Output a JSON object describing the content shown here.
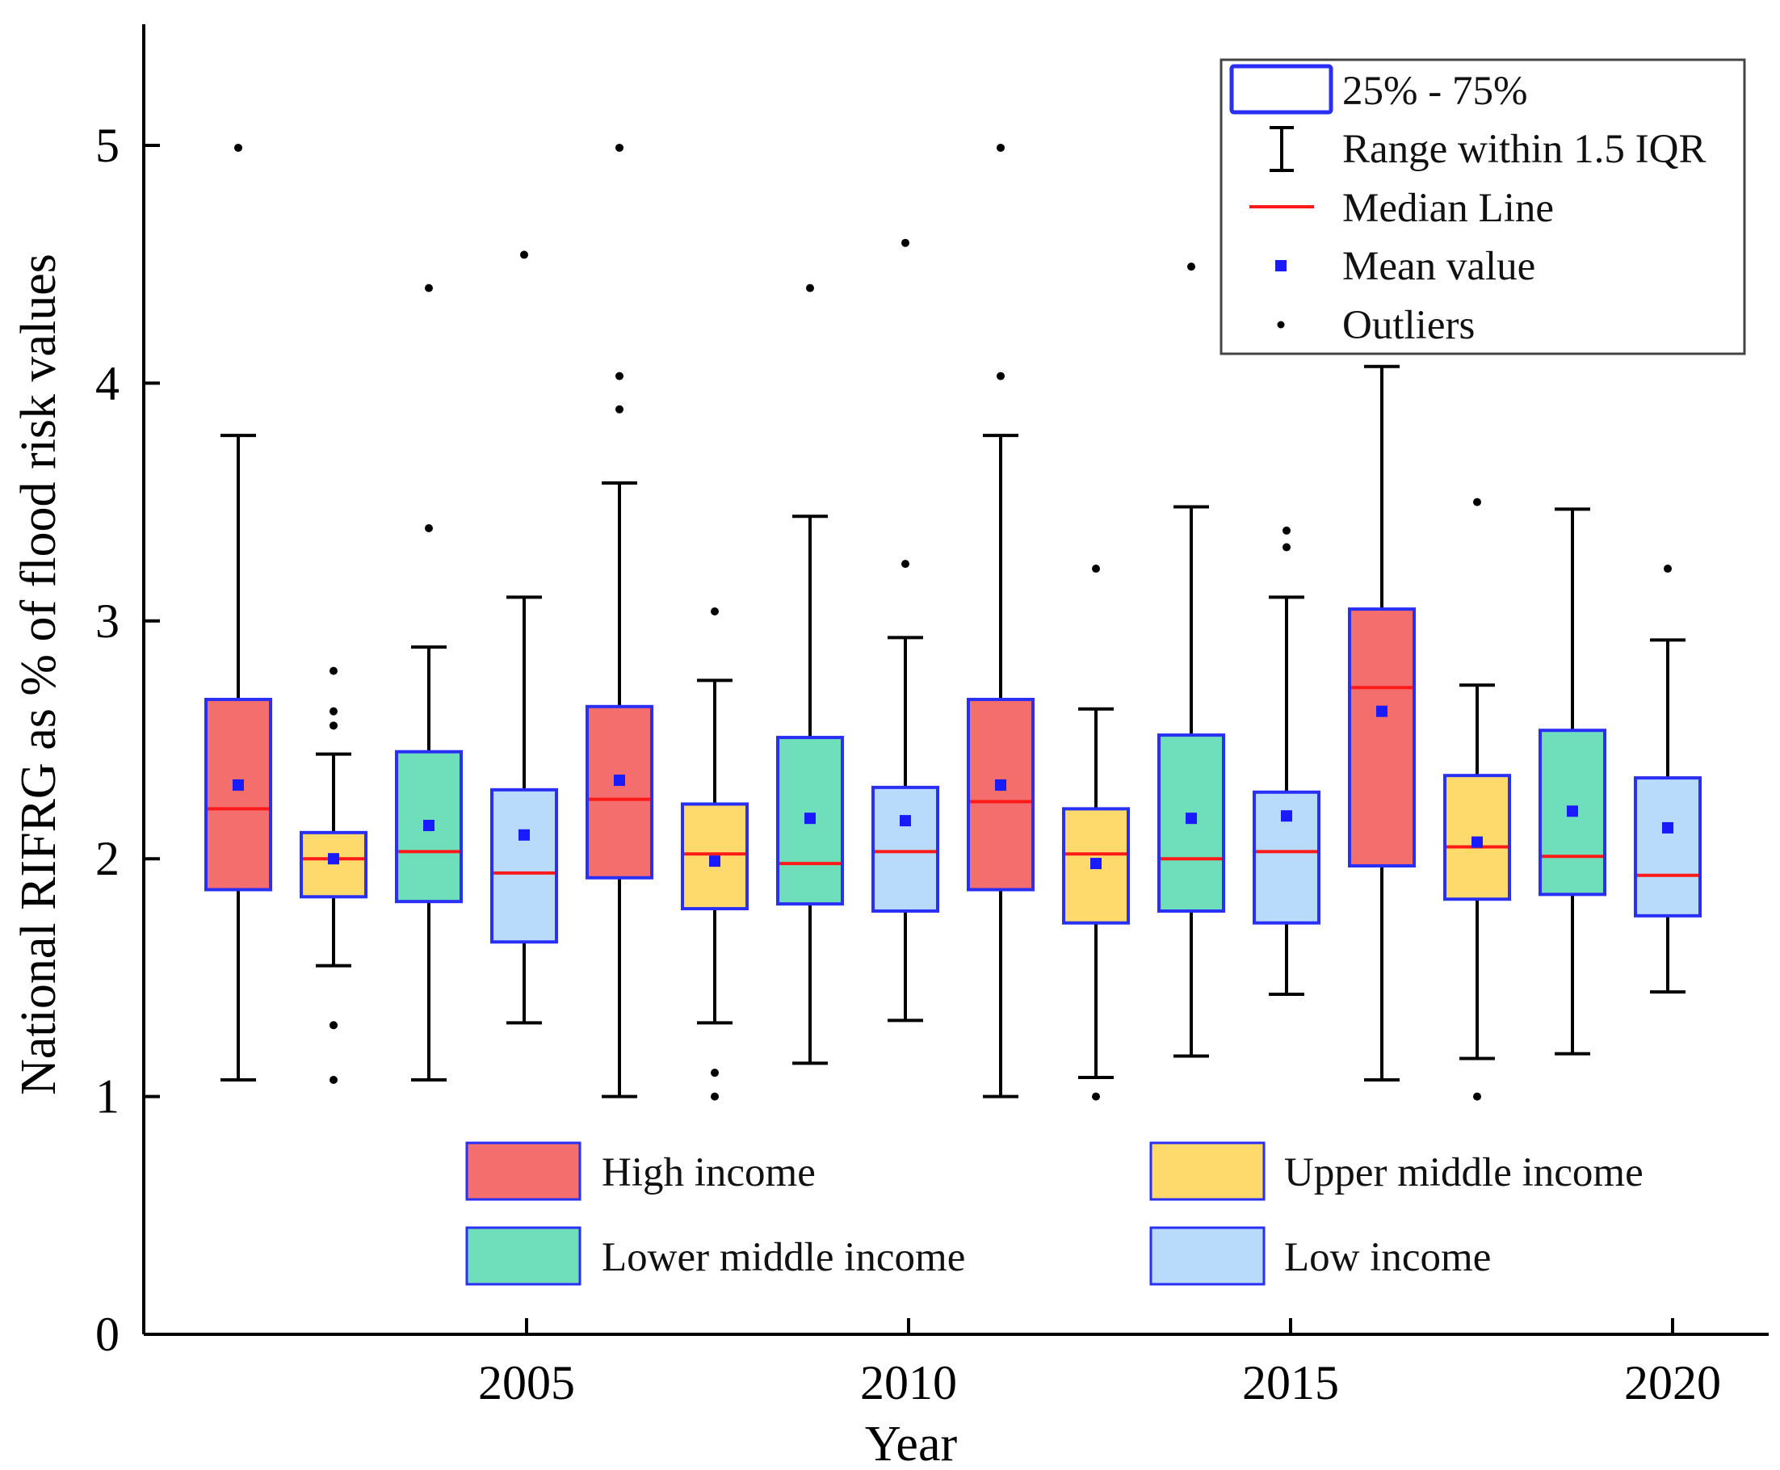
{
  "chart_data": {
    "type": "box",
    "title": "",
    "xlabel": "Year",
    "ylabel": "National RIFRG as % of flood risk values",
    "ylim": [
      0,
      5.5
    ],
    "yticks": [
      0,
      1,
      2,
      3,
      4,
      5
    ],
    "xticks": [
      "2005",
      "2010",
      "2015",
      "2020"
    ],
    "grid": false,
    "groups": [
      {
        "key": "high",
        "name": "High income",
        "color": "#f46e6e"
      },
      {
        "key": "upper",
        "name": "Upper middle income",
        "color": "#fdda6b"
      },
      {
        "key": "lower",
        "name": "Lower middle income",
        "color": "#6fdfbb"
      },
      {
        "key": "low",
        "name": "Low income",
        "color": "#b9dbfb"
      }
    ],
    "boxes": [
      {
        "group": "high",
        "whisker_low": 1.07,
        "q1": 1.87,
        "median": 2.21,
        "q3": 2.67,
        "whisker_high": 3.78,
        "mean": 2.31,
        "outliers": [
          4.99
        ]
      },
      {
        "group": "upper",
        "whisker_low": 1.55,
        "q1": 1.84,
        "median": 2.0,
        "q3": 2.11,
        "whisker_high": 2.44,
        "mean": 2.0,
        "outliers": [
          2.79,
          2.62,
          2.56,
          1.3,
          1.07
        ]
      },
      {
        "group": "lower",
        "whisker_low": 1.07,
        "q1": 1.82,
        "median": 2.03,
        "q3": 2.45,
        "whisker_high": 2.89,
        "mean": 2.14,
        "outliers": [
          4.4,
          3.39
        ]
      },
      {
        "group": "low",
        "whisker_low": 1.31,
        "q1": 1.65,
        "median": 1.94,
        "q3": 2.29,
        "whisker_high": 3.1,
        "mean": 2.1,
        "outliers": [
          4.54
        ]
      },
      {
        "group": "high",
        "whisker_low": 1.0,
        "q1": 1.92,
        "median": 2.25,
        "q3": 2.64,
        "whisker_high": 3.58,
        "mean": 2.33,
        "outliers": [
          4.99,
          4.03,
          3.89
        ]
      },
      {
        "group": "upper",
        "whisker_low": 1.31,
        "q1": 1.79,
        "median": 2.02,
        "q3": 2.23,
        "whisker_high": 2.75,
        "mean": 1.99,
        "outliers": [
          3.04,
          1.1,
          1.0
        ]
      },
      {
        "group": "lower",
        "whisker_low": 1.14,
        "q1": 1.81,
        "median": 1.98,
        "q3": 2.51,
        "whisker_high": 3.44,
        "mean": 2.17,
        "outliers": [
          4.4
        ]
      },
      {
        "group": "low",
        "whisker_low": 1.32,
        "q1": 1.78,
        "median": 2.03,
        "q3": 2.3,
        "whisker_high": 2.93,
        "mean": 2.16,
        "outliers": [
          4.59,
          3.24
        ]
      },
      {
        "group": "high",
        "whisker_low": 1.0,
        "q1": 1.87,
        "median": 2.24,
        "q3": 2.67,
        "whisker_high": 3.78,
        "mean": 2.31,
        "outliers": [
          4.99,
          4.03
        ]
      },
      {
        "group": "upper",
        "whisker_low": 1.08,
        "q1": 1.73,
        "median": 2.02,
        "q3": 2.21,
        "whisker_high": 2.63,
        "mean": 1.98,
        "outliers": [
          3.22,
          1.0
        ]
      },
      {
        "group": "lower",
        "whisker_low": 1.17,
        "q1": 1.78,
        "median": 2.0,
        "q3": 2.52,
        "whisker_high": 3.48,
        "mean": 2.17,
        "outliers": [
          4.49
        ]
      },
      {
        "group": "low",
        "whisker_low": 1.43,
        "q1": 1.73,
        "median": 2.03,
        "q3": 2.28,
        "whisker_high": 3.1,
        "mean": 2.18,
        "outliers": [
          3.38,
          3.31
        ]
      },
      {
        "group": "high",
        "whisker_low": 1.07,
        "q1": 1.97,
        "median": 2.72,
        "q3": 3.05,
        "whisker_high": 4.07,
        "mean": 2.62,
        "outliers": []
      },
      {
        "group": "upper",
        "whisker_low": 1.16,
        "q1": 1.83,
        "median": 2.05,
        "q3": 2.35,
        "whisker_high": 2.73,
        "mean": 2.07,
        "outliers": [
          3.5,
          1.0
        ]
      },
      {
        "group": "lower",
        "whisker_low": 1.18,
        "q1": 1.85,
        "median": 2.01,
        "q3": 2.54,
        "whisker_high": 3.47,
        "mean": 2.2,
        "outliers": []
      },
      {
        "group": "low",
        "whisker_low": 1.44,
        "q1": 1.76,
        "median": 1.93,
        "q3": 2.34,
        "whisker_high": 2.92,
        "mean": 2.13,
        "outliers": [
          3.22
        ]
      }
    ],
    "legend_stats": {
      "box": "25% - 75%",
      "whisker": "Range within 1.5 IQR",
      "median": "Median Line",
      "mean": "Mean value",
      "outlier": "Outliers"
    },
    "colors": {
      "box_border": "#2a2ff5",
      "median": "#ff1a1a",
      "mean": "#1a1aff",
      "whisker": "#000000"
    }
  }
}
